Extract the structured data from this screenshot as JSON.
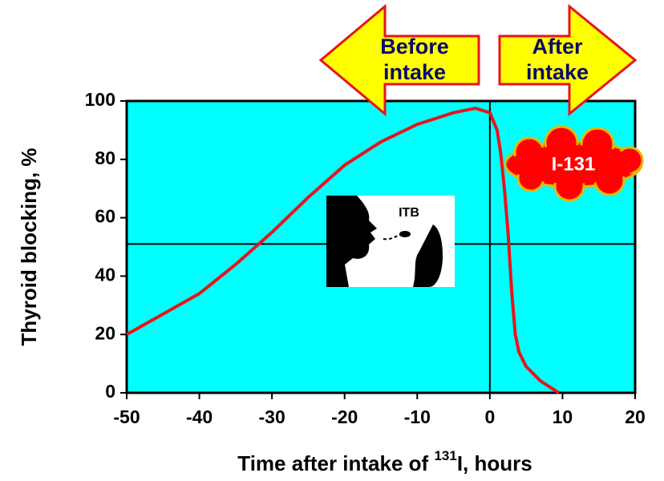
{
  "chart_data": {
    "type": "line",
    "ylabel": "Thyroid blocking, %",
    "xlabel_parts": [
      "Time after intake of ",
      "131",
      "I, hours"
    ],
    "xlim": [
      -50,
      20
    ],
    "ylim": [
      0,
      100
    ],
    "xticks": [
      -50,
      -40,
      -30,
      -20,
      -10,
      0,
      10,
      20
    ],
    "yticks": [
      0,
      20,
      40,
      60,
      80,
      100
    ],
    "background": "#00ffff",
    "hline": 51,
    "vline": 0,
    "series": [
      {
        "color": "#e8141c",
        "x": [
          -50,
          -45,
          -40,
          -35,
          -30,
          -25,
          -20,
          -15,
          -10,
          -5,
          -2,
          0,
          1,
          1.5,
          2,
          2.5,
          3,
          3.5,
          4,
          5,
          7,
          9.5
        ],
        "values": [
          20,
          27,
          34,
          44,
          55,
          67,
          78,
          86,
          92,
          96,
          97.5,
          96,
          90,
          82,
          70,
          55,
          35,
          20,
          14,
          9,
          4,
          0
        ]
      }
    ],
    "annotations": {
      "before": [
        "Before",
        "intake"
      ],
      "after": [
        "After",
        "intake"
      ],
      "cloud": "I-131",
      "image": "ITB"
    }
  }
}
